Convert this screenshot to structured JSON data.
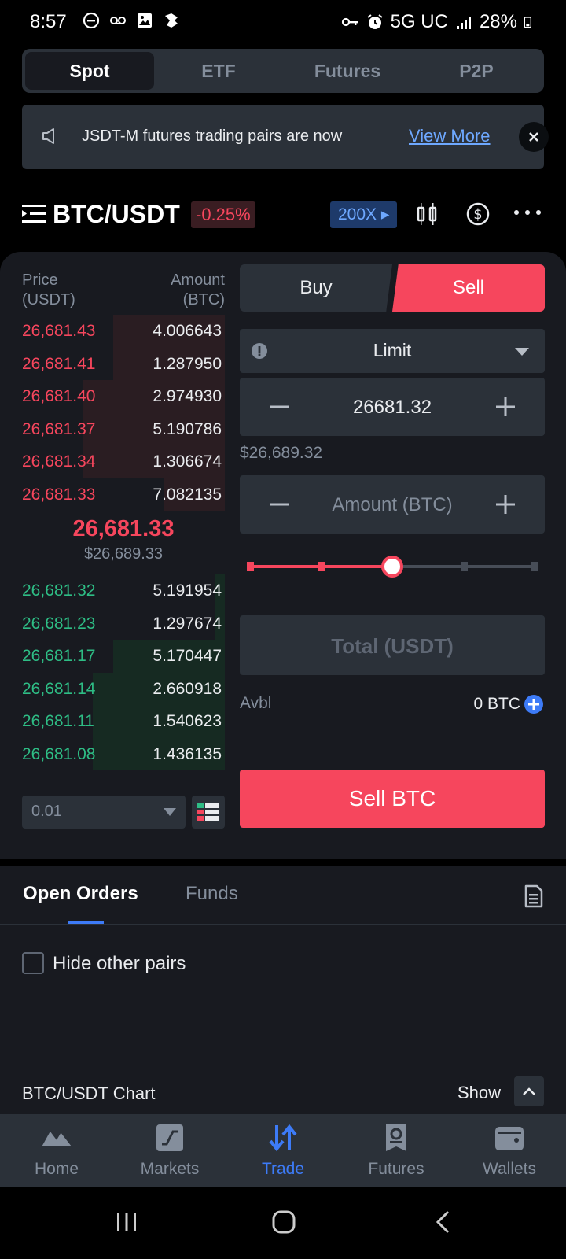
{
  "status_bar": {
    "time": "8:57",
    "network": "5G UC",
    "battery": "28%"
  },
  "segments": [
    "Spot",
    "ETF",
    "Futures",
    "P2P"
  ],
  "active_segment": "Spot",
  "banner": {
    "text": "JSDT-M futures trading pairs are now",
    "link": "View More"
  },
  "pair": {
    "symbol": "BTC/USDT",
    "change": "-0.25%",
    "leverage": "200X"
  },
  "orderbook": {
    "price_header": "Price\n(USDT)",
    "price_header_1": "Price",
    "price_header_2": "(USDT)",
    "amount_header_1": "Amount",
    "amount_header_2": "(BTC)",
    "asks": [
      {
        "price": "26,681.43",
        "amount": "4.006643",
        "depth": 0.55
      },
      {
        "price": "26,681.41",
        "amount": "1.287950",
        "depth": 0.55
      },
      {
        "price": "26,681.40",
        "amount": "2.974930",
        "depth": 0.7
      },
      {
        "price": "26,681.37",
        "amount": "5.190786",
        "depth": 0.7
      },
      {
        "price": "26,681.34",
        "amount": "1.306674",
        "depth": 0.7
      },
      {
        "price": "26,681.33",
        "amount": "7.082135",
        "depth": 0.3
      }
    ],
    "mid_price": "26,681.33",
    "mid_usd": "$26,689.33",
    "bids": [
      {
        "price": "26,681.32",
        "amount": "5.191954",
        "depth": 0.05
      },
      {
        "price": "26,681.23",
        "amount": "1.297674",
        "depth": 0.05
      },
      {
        "price": "26,681.17",
        "amount": "5.170447",
        "depth": 0.55
      },
      {
        "price": "26,681.14",
        "amount": "2.660918",
        "depth": 0.65
      },
      {
        "price": "26,681.11",
        "amount": "1.540623",
        "depth": 0.65
      },
      {
        "price": "26,681.08",
        "amount": "1.436135",
        "depth": 0.65
      }
    ],
    "decimals": "0.01"
  },
  "trade": {
    "buy_label": "Buy",
    "sell_label": "Sell",
    "order_type": "Limit",
    "price_value": "26681.32",
    "price_usd": "$26,689.32",
    "amount_placeholder": "Amount (BTC)",
    "slider_level": 0.5,
    "total_placeholder": "Total (USDT)",
    "avbl_label": "Avbl",
    "avbl_value": "0 BTC",
    "submit_label": "Sell BTC"
  },
  "orders": {
    "tab_open": "Open Orders",
    "tab_funds": "Funds",
    "hide_label": "Hide other pairs"
  },
  "chart_bar": {
    "title": "BTC/USDT Chart",
    "show_label": "Show"
  },
  "nav": [
    {
      "label": "Home",
      "icon": "home-icon"
    },
    {
      "label": "Markets",
      "icon": "markets-icon"
    },
    {
      "label": "Trade",
      "icon": "trade-icon"
    },
    {
      "label": "Futures",
      "icon": "futures-icon"
    },
    {
      "label": "Wallets",
      "icon": "wallet-icon"
    }
  ],
  "colors": {
    "sell": "#f6465d",
    "buy": "#2ebd85",
    "accent": "#3d7bf7",
    "bg": "#181a20"
  }
}
